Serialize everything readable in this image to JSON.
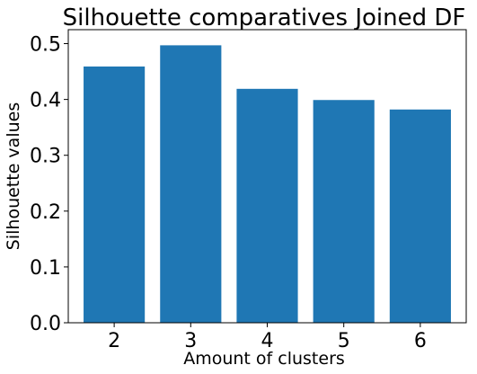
{
  "chart_data": {
    "type": "bar",
    "title": "Silhouette comparatives Joined DF",
    "xlabel": "Amount of clusters",
    "ylabel": "Silhouette values",
    "categories": [
      "2",
      "3",
      "4",
      "5",
      "6"
    ],
    "values": [
      0.459,
      0.497,
      0.419,
      0.399,
      0.382
    ],
    "ylim": [
      0,
      0.525
    ],
    "yticks": [
      "0.0",
      "0.1",
      "0.2",
      "0.3",
      "0.4",
      "0.5"
    ],
    "bar_color": "#1f77b4",
    "grid": false,
    "legend": "none"
  }
}
